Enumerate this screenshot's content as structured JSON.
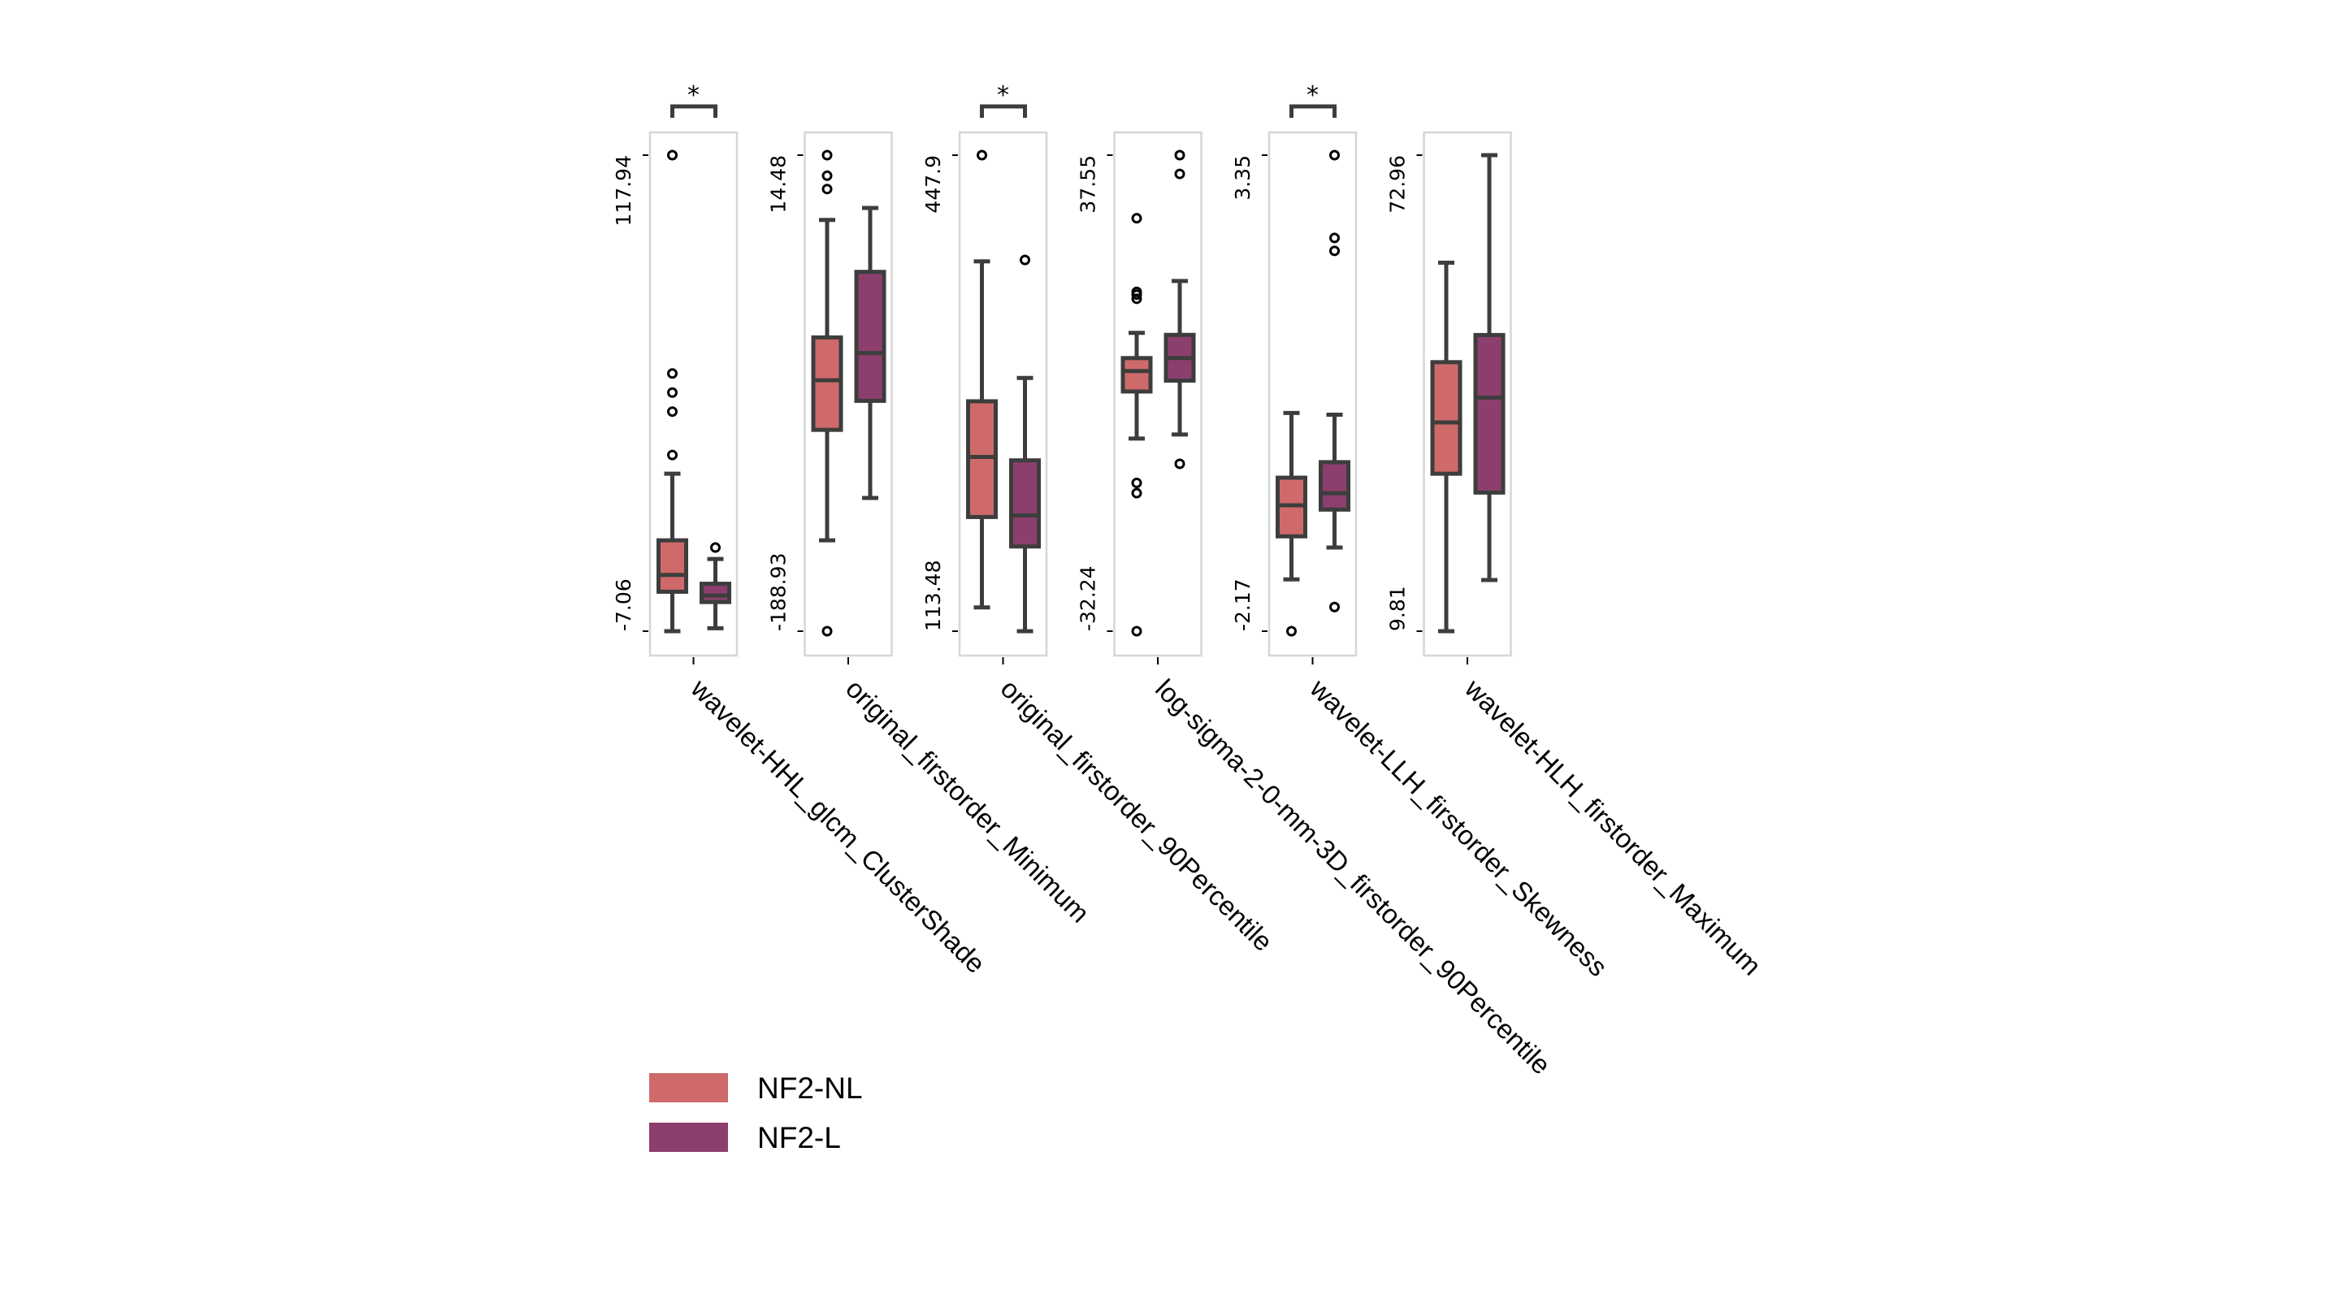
{
  "chart_data": {
    "type": "box",
    "title": "",
    "colors": {
      "NF2-NL": "#cf6a6a",
      "NF2-L": "#8c3f6c",
      "edge": "#3d3d3d",
      "frame": "#d6d6d6"
    },
    "legend": {
      "placement": "bottom-left",
      "entries": [
        "NF2-NL",
        "NF2-L"
      ]
    },
    "panels": [
      {
        "feature": "wavelet-HHL_glcm_ClusterShade",
        "yticks": [
          "-7.06",
          "117.94"
        ],
        "ylim": [
          -7.06,
          117.94
        ],
        "significance": "*",
        "groups": [
          {
            "name": "NF2-NL",
            "whislo": -7.06,
            "q1": 3.3,
            "med": 7.7,
            "q3": 16.8,
            "whishi": 34.3,
            "fliers": [
              39.2,
              50.6,
              55.6,
              60.6,
              117.94
            ]
          },
          {
            "name": "NF2-L",
            "whislo": -6.3,
            "q1": 0.6,
            "med": 2.3,
            "q3": 5.4,
            "whishi": 11.9,
            "fliers": [
              14.9
            ]
          }
        ]
      },
      {
        "feature": "original_firstorder_Minimum",
        "yticks": [
          "-188.93",
          "14.48"
        ],
        "ylim": [
          -188.93,
          14.48
        ],
        "significance": "",
        "groups": [
          {
            "name": "NF2-NL",
            "whislo": -150.1,
            "q1": -102.9,
            "med": -81.7,
            "q3": -63.4,
            "whishi": -13.2,
            "fliers": [
              -188.93,
              0.0,
              5.7,
              14.48
            ]
          },
          {
            "name": "NF2-L",
            "whislo": -132.0,
            "q1": -90.5,
            "med": -70.1,
            "q3": -35.4,
            "whishi": -8.1,
            "fliers": []
          }
        ]
      },
      {
        "feature": "original_firstorder_90Percentile",
        "yticks": [
          "113.48",
          "447.9"
        ],
        "ylim": [
          113.48,
          447.9
        ],
        "significance": "*",
        "groups": [
          {
            "name": "NF2-NL",
            "whislo": 130.2,
            "q1": 193.7,
            "med": 235.9,
            "q3": 275.0,
            "whishi": 373.3,
            "fliers": [
              447.9
            ]
          },
          {
            "name": "NF2-L",
            "whislo": 113.48,
            "q1": 173.0,
            "med": 194.8,
            "q3": 233.5,
            "whishi": 291.4,
            "fliers": [
              374.3
            ]
          }
        ]
      },
      {
        "feature": "log-sigma-2-0-mm-3D_firstorder_90Percentile",
        "yticks": [
          "-32.24",
          "37.55"
        ],
        "ylim": [
          -32.24,
          37.55
        ],
        "significance": "",
        "groups": [
          {
            "name": "NF2-NL",
            "whislo": -4.0,
            "q1": 2.9,
            "med": 5.9,
            "q3": 7.8,
            "whishi": 11.5,
            "fliers": [
              -32.24,
              -12.0,
              -10.5,
              16.5,
              17.1,
              17.5,
              28.3
            ]
          },
          {
            "name": "NF2-L",
            "whislo": -3.4,
            "q1": 4.5,
            "med": 7.8,
            "q3": 11.2,
            "whishi": 19.1,
            "fliers": [
              -7.7,
              34.8,
              37.55
            ]
          }
        ]
      },
      {
        "feature": "wavelet-LLH_firstorder_Skewness",
        "yticks": [
          "-2.17",
          "3.35"
        ],
        "ylim": [
          -2.17,
          3.35
        ],
        "significance": "*",
        "groups": [
          {
            "name": "NF2-NL",
            "whislo": -1.57,
            "q1": -1.07,
            "med": -0.71,
            "q3": -0.39,
            "whishi": 0.36,
            "fliers": [
              -2.17
            ]
          },
          {
            "name": "NF2-L",
            "whislo": -1.2,
            "q1": -0.76,
            "med": -0.57,
            "q3": -0.21,
            "whishi": 0.34,
            "fliers": [
              -1.89,
              2.24,
              2.39,
              3.35
            ]
          }
        ]
      },
      {
        "feature": "wavelet-HLH_firstorder_Maximum",
        "yticks": [
          "9.81",
          "72.96"
        ],
        "ylim": [
          9.81,
          72.96
        ],
        "significance": "",
        "groups": [
          {
            "name": "NF2-NL",
            "whislo": 9.81,
            "q1": 30.7,
            "med": 37.5,
            "q3": 45.5,
            "whishi": 58.7,
            "fliers": []
          },
          {
            "name": "NF2-L",
            "whislo": 16.6,
            "q1": 28.2,
            "med": 40.8,
            "q3": 49.1,
            "whishi": 72.96,
            "fliers": []
          }
        ]
      }
    ]
  }
}
